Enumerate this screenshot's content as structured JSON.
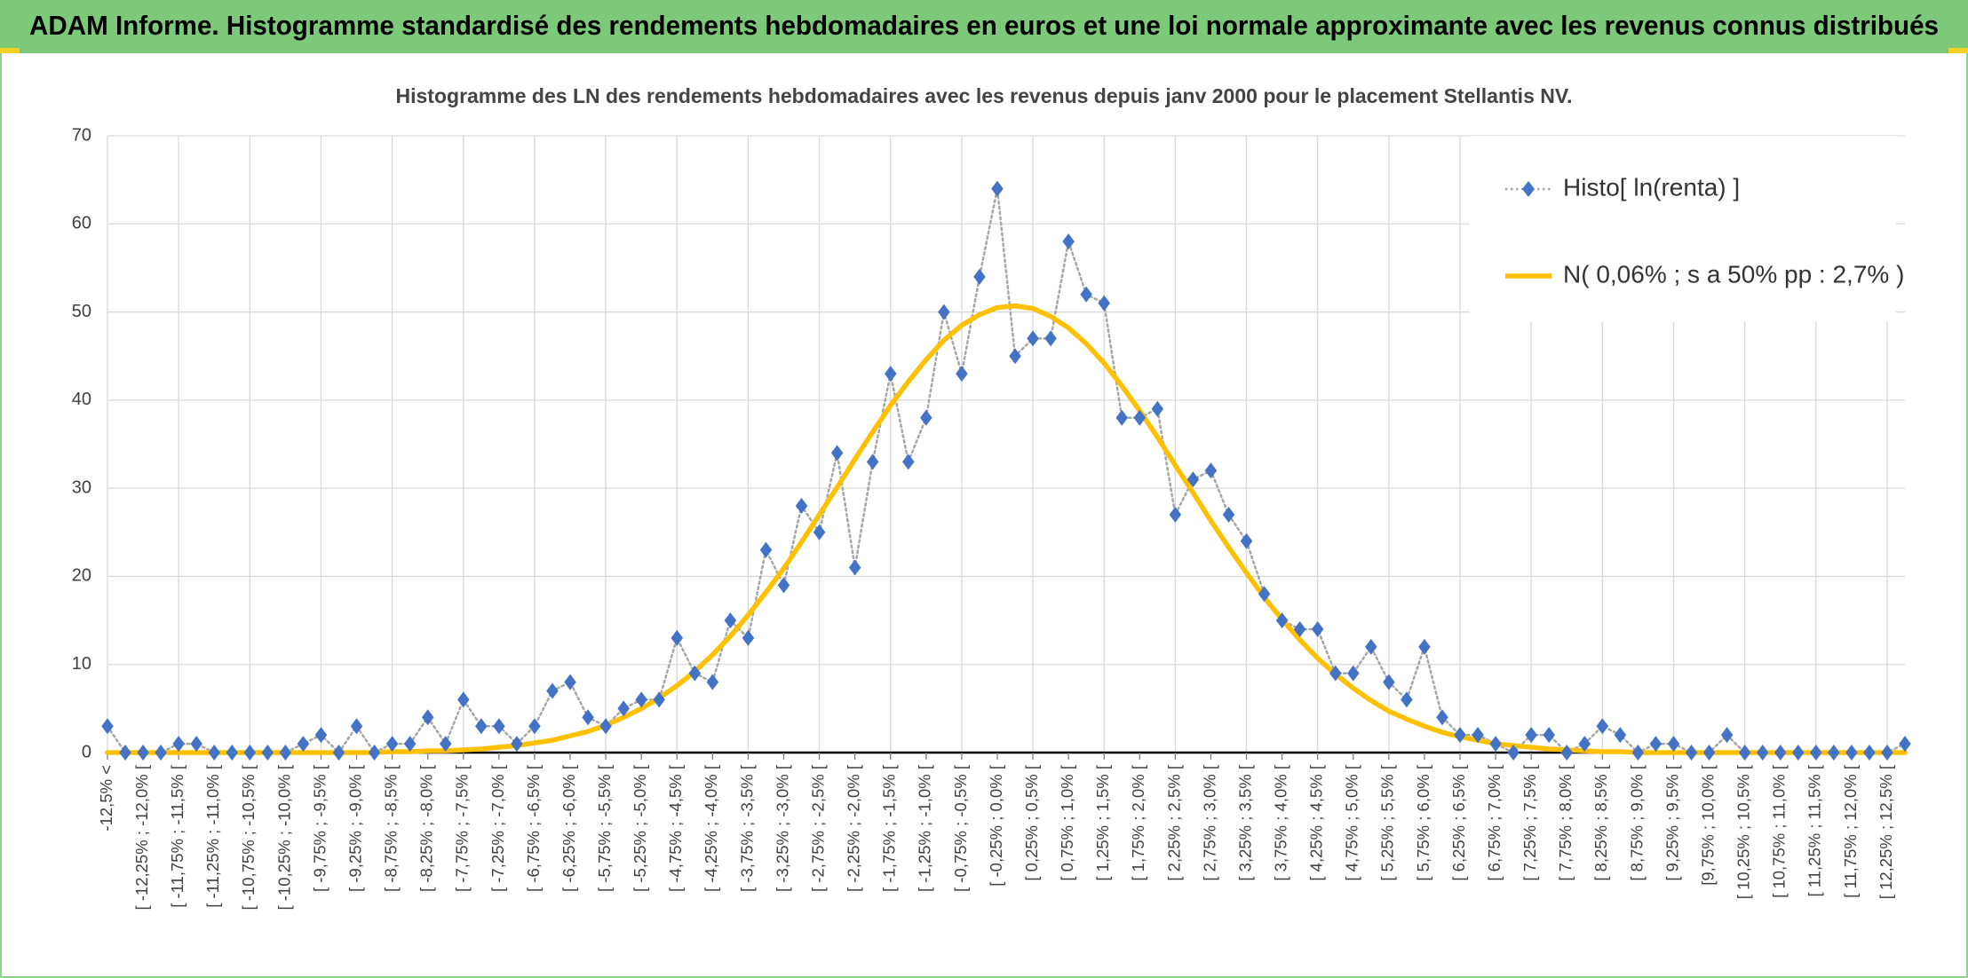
{
  "chart_data": {
    "type": "line",
    "title": "ADAM Informe. Histogramme standardisé des rendements hebdomadaires en euros et une loi normale approximante avec les revenus connus distribués",
    "subtitle": "Histogramme des LN des rendements hebdomadaires avec les revenus depuis janv 2000 pour le placement Stellantis NV.",
    "categories": [
      "-12,5% <",
      null,
      "[ -12,25% ; -12,0% [",
      null,
      "[ -11,75% ; -11,5% [",
      null,
      "[ -11,25% ; -11,0% [",
      null,
      "[ -10,75% ; -10,5% [",
      null,
      "[ -10,25% ; -10,0% [",
      null,
      "[ -9,75% ; -9,5% [",
      null,
      "[ -9,25% ; -9,0% [",
      null,
      "[ -8,75% ; -8,5% [",
      null,
      "[ -8,25% ; -8,0% [",
      null,
      "[ -7,75% ; -7,5% [",
      null,
      "[ -7,25% ; -7,0% [",
      null,
      "[ -6,75% ; -6,5% [",
      null,
      "[ -6,25% ; -6,0% [",
      null,
      "[ -5,75% ; -5,5% [",
      null,
      "[ -5,25% ; -5,0% [",
      null,
      "[ -4,75% ; -4,5% [",
      null,
      "[ -4,25% ; -4,0% [",
      null,
      "[ -3,75% ; -3,5% [",
      null,
      "[ -3,25% ; -3,0% [",
      null,
      "[ -2,75% ; -2,5% [",
      null,
      "[ -2,25% ; -2,0% [",
      null,
      "[ -1,75% ; -1,5% [",
      null,
      "[ -1,25% ; -1,0% [",
      null,
      "[ -0,75% ; -0,5% [",
      null,
      "[ -0,25% ; 0,0% [",
      null,
      "[ 0,25% ; 0,5% [",
      null,
      "[ 0,75% ; 1,0% [",
      null,
      "[ 1,25% ; 1,5% [",
      null,
      "[ 1,75% ; 2,0% [",
      null,
      "[ 2,25% ; 2,5% [",
      null,
      "[ 2,75% ; 3,0% [",
      null,
      "[ 3,25% ; 3,5% [",
      null,
      "[ 3,75% ; 4,0% [",
      null,
      "[ 4,25% ; 4,5% [",
      null,
      "[ 4,75% ; 5,0% [",
      null,
      "[ 5,25% ; 5,5% [",
      null,
      "[ 5,75% ; 6,0% [",
      null,
      "[ 6,25% ; 6,5% [",
      null,
      "[ 6,75% ; 7,0% [",
      null,
      "[ 7,25% ; 7,5% [",
      null,
      "[ 7,75% ; 8,0% [",
      null,
      "[ 8,25% ; 8,5% [",
      null,
      "[ 8,75% ; 9,0% [",
      null,
      "[ 9,25% ; 9,5% [",
      null,
      "[9,75% ; 10,0% [",
      null,
      "[ 10,25% ; 10,5% [",
      null,
      "[ 10,75% ; 11,0% [",
      null,
      "[ 11,25% ; 11,5% [",
      null,
      "[ 11,75% ; 12,0% [",
      null,
      "[ 12,25% ; 12,5% [",
      null
    ],
    "series": [
      {
        "name": "Histo[ ln(renta) ]",
        "color": "#4472c4",
        "line_color": "#a6a6a6",
        "marker": "diamond",
        "line_style": "dotted",
        "values": [
          3,
          0,
          0,
          0,
          1,
          1,
          0,
          0,
          0,
          0,
          0,
          1,
          2,
          0,
          3,
          0,
          1,
          1,
          4,
          1,
          6,
          3,
          3,
          1,
          3,
          7,
          8,
          4,
          3,
          5,
          6,
          6,
          13,
          9,
          8,
          15,
          13,
          23,
          19,
          28,
          25,
          34,
          21,
          33,
          43,
          33,
          38,
          50,
          43,
          54,
          64,
          45,
          47,
          47,
          58,
          52,
          51,
          38,
          38,
          39,
          27,
          31,
          32,
          27,
          24,
          18,
          15,
          14,
          14,
          9,
          9,
          12,
          8,
          6,
          12,
          4,
          2,
          2,
          1,
          0,
          2,
          2,
          0,
          1,
          3,
          2,
          0,
          1,
          1,
          0,
          0,
          2,
          0,
          0,
          0,
          0,
          0,
          0,
          0,
          0,
          0,
          1
        ]
      },
      {
        "name": "N( 0,06% ; s a 50% pp : 2,7% )",
        "color": "#ffc000",
        "marker": "none",
        "line_style": "solid",
        "values": [
          0,
          0,
          0,
          0,
          0,
          0,
          0,
          0,
          0,
          0,
          0,
          0,
          0,
          0,
          0,
          0,
          0.1,
          0.1,
          0.2,
          0.2,
          0.3,
          0.4,
          0.6,
          0.8,
          1.1,
          1.4,
          1.9,
          2.4,
          3.1,
          4.0,
          5.0,
          6.2,
          7.6,
          9.2,
          11.1,
          13.2,
          15.6,
          18.2,
          20.9,
          23.9,
          27.0,
          30.1,
          33.3,
          36.4,
          39.4,
          42.1,
          44.6,
          46.8,
          48.5,
          49.7,
          50.5,
          50.7,
          50.4,
          49.5,
          48.2,
          46.4,
          44.2,
          41.6,
          38.8,
          35.8,
          32.6,
          29.5,
          26.3,
          23.3,
          20.4,
          17.6,
          15.1,
          12.8,
          10.7,
          8.9,
          7.3,
          5.9,
          4.7,
          3.8,
          3.0,
          2.3,
          1.8,
          1.4,
          1.0,
          0.8,
          0.6,
          0.4,
          0.3,
          0.2,
          0.1,
          0.1,
          0,
          0,
          0,
          0,
          0,
          0,
          0,
          0,
          0,
          0,
          0,
          0,
          0,
          0,
          0,
          0
        ]
      }
    ],
    "ylim": [
      0,
      70
    ],
    "yticks": [
      0,
      10,
      20,
      30,
      40,
      50,
      60,
      70
    ],
    "grid": true,
    "legend": "top-right"
  }
}
